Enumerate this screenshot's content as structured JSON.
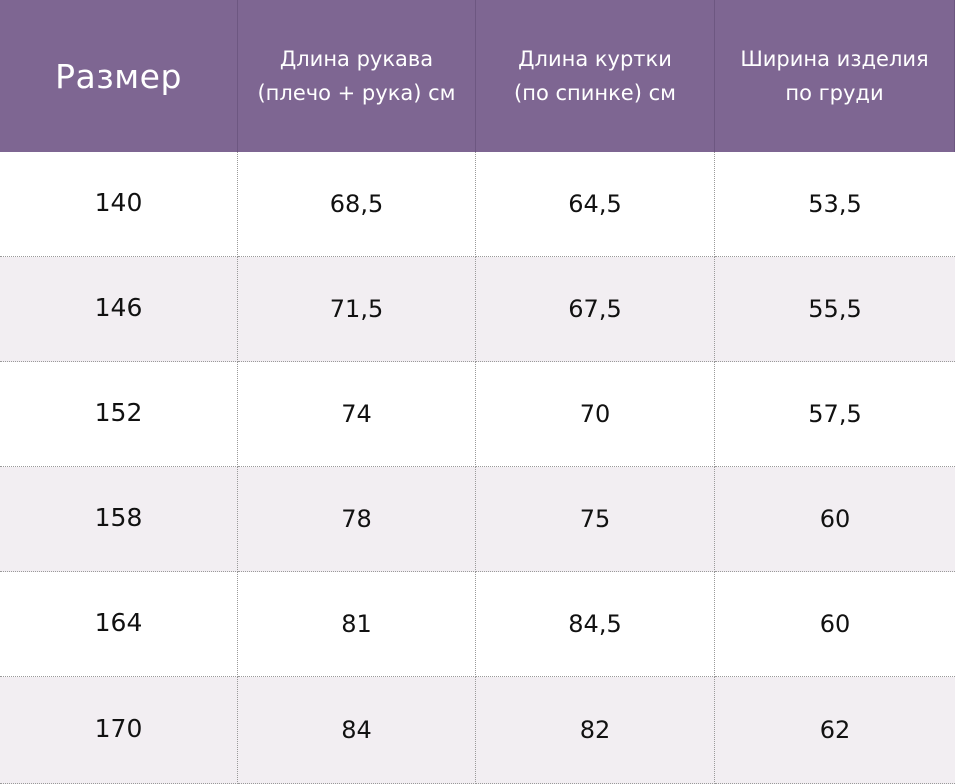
{
  "table": {
    "headers": [
      {
        "lines": [
          "Размер"
        ]
      },
      {
        "lines": [
          "Длина рукава",
          "(плечо + рука) см"
        ]
      },
      {
        "lines": [
          "Длина куртки",
          "(по спинке) см"
        ]
      },
      {
        "lines": [
          "Ширина изделия",
          "по груди"
        ]
      }
    ],
    "rows": [
      [
        "140",
        "68,5",
        "64,5",
        "53,5"
      ],
      [
        "146",
        "71,5",
        "67,5",
        "55,5"
      ],
      [
        "152",
        "74",
        "70",
        "57,5"
      ],
      [
        "158",
        "78",
        "75",
        "60"
      ],
      [
        "164",
        "81",
        "84,5",
        "60"
      ],
      [
        "170",
        "84",
        "82",
        "62"
      ]
    ]
  },
  "colors": {
    "header_bg": "#7e6692",
    "header_text": "#ffffff",
    "row_alt_bg": "#f2eef2"
  }
}
